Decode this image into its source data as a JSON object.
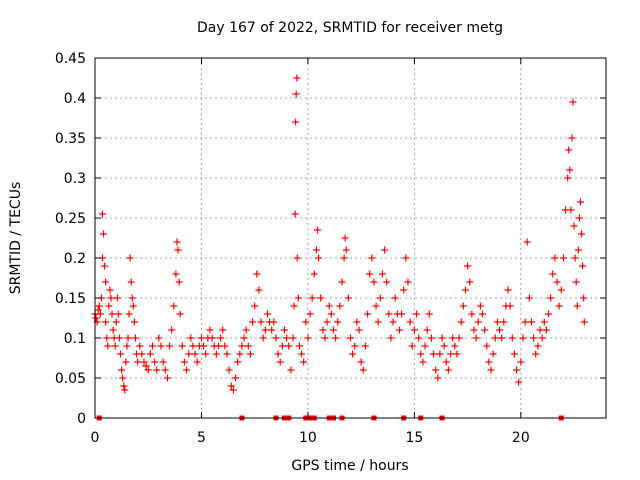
{
  "chart_data": {
    "type": "scatter",
    "title": "Day 167 of 2022, SRMTID for receiver metg",
    "xlabel": "GPS time / hours",
    "ylabel": "SRMTID / TECUs",
    "xlim": [
      0,
      24
    ],
    "ylim": [
      0,
      0.45
    ],
    "xticks": [
      0,
      5,
      10,
      15,
      20
    ],
    "yticks": [
      0,
      0.05,
      0.1,
      0.15,
      0.2,
      0.25,
      0.3,
      0.35,
      0.4,
      0.45
    ],
    "xtick_labels": [
      "0",
      "5",
      "10",
      "15",
      "20"
    ],
    "ytick_labels": [
      "0",
      "0.05",
      "0.1",
      "0.15",
      "0.2",
      "0.25",
      "0.3",
      "0.35",
      "0.4",
      "0.45"
    ],
    "grid": true,
    "marker": "+",
    "color": "#ff0000",
    "series": [
      {
        "name": "SRMTID",
        "points": [
          [
            0.0,
            0.13
          ],
          [
            0.05,
            0.125
          ],
          [
            0.1,
            0.12
          ],
          [
            0.15,
            0.135
          ],
          [
            0.2,
            0.14
          ],
          [
            0.25,
            0.13
          ],
          [
            0.3,
            0.15
          ],
          [
            0.35,
            0.2
          ],
          [
            0.35,
            0.255
          ],
          [
            0.4,
            0.23
          ],
          [
            0.45,
            0.19
          ],
          [
            0.5,
            0.17
          ],
          [
            0.5,
            0.12
          ],
          [
            0.55,
            0.1
          ],
          [
            0.6,
            0.09
          ],
          [
            0.65,
            0.14
          ],
          [
            0.7,
            0.16
          ],
          [
            0.75,
            0.15
          ],
          [
            0.8,
            0.13
          ],
          [
            0.85,
            0.11
          ],
          [
            0.9,
            0.1
          ],
          [
            0.95,
            0.09
          ],
          [
            1.0,
            0.12
          ],
          [
            1.05,
            0.15
          ],
          [
            1.1,
            0.13
          ],
          [
            1.15,
            0.1
          ],
          [
            1.2,
            0.08
          ],
          [
            1.25,
            0.06
          ],
          [
            1.3,
            0.05
          ],
          [
            1.35,
            0.04
          ],
          [
            1.4,
            0.035
          ],
          [
            1.45,
            0.07
          ],
          [
            1.5,
            0.09
          ],
          [
            1.55,
            0.1
          ],
          [
            1.6,
            0.13
          ],
          [
            1.65,
            0.2
          ],
          [
            1.7,
            0.17
          ],
          [
            1.75,
            0.15
          ],
          [
            1.8,
            0.14
          ],
          [
            1.85,
            0.12
          ],
          [
            1.9,
            0.1
          ],
          [
            1.95,
            0.08
          ],
          [
            2.0,
            0.07
          ],
          [
            2.1,
            0.09
          ],
          [
            2.2,
            0.08
          ],
          [
            2.3,
            0.07
          ],
          [
            2.4,
            0.065
          ],
          [
            2.5,
            0.06
          ],
          [
            2.6,
            0.08
          ],
          [
            2.7,
            0.09
          ],
          [
            2.8,
            0.07
          ],
          [
            2.9,
            0.06
          ],
          [
            3.0,
            0.1
          ],
          [
            3.1,
            0.09
          ],
          [
            3.2,
            0.07
          ],
          [
            3.3,
            0.06
          ],
          [
            3.4,
            0.05
          ],
          [
            3.5,
            0.09
          ],
          [
            3.6,
            0.11
          ],
          [
            3.7,
            0.14
          ],
          [
            3.8,
            0.18
          ],
          [
            3.85,
            0.22
          ],
          [
            3.9,
            0.21
          ],
          [
            3.95,
            0.17
          ],
          [
            4.0,
            0.13
          ],
          [
            4.1,
            0.09
          ],
          [
            4.2,
            0.07
          ],
          [
            4.3,
            0.06
          ],
          [
            4.4,
            0.08
          ],
          [
            4.5,
            0.1
          ],
          [
            4.6,
            0.09
          ],
          [
            4.7,
            0.08
          ],
          [
            4.8,
            0.07
          ],
          [
            4.9,
            0.09
          ],
          [
            5.0,
            0.1
          ],
          [
            5.1,
            0.09
          ],
          [
            5.2,
            0.08
          ],
          [
            5.3,
            0.1
          ],
          [
            5.4,
            0.11
          ],
          [
            5.5,
            0.1
          ],
          [
            5.6,
            0.09
          ],
          [
            5.7,
            0.08
          ],
          [
            5.8,
            0.09
          ],
          [
            5.9,
            0.1
          ],
          [
            6.0,
            0.11
          ],
          [
            6.1,
            0.09
          ],
          [
            6.2,
            0.08
          ],
          [
            6.3,
            0.06
          ],
          [
            6.4,
            0.04
          ],
          [
            6.5,
            0.035
          ],
          [
            6.6,
            0.05
          ],
          [
            6.7,
            0.07
          ],
          [
            6.8,
            0.08
          ],
          [
            6.9,
            0.09
          ],
          [
            7.0,
            0.1
          ],
          [
            7.1,
            0.11
          ],
          [
            7.2,
            0.09
          ],
          [
            7.3,
            0.08
          ],
          [
            7.4,
            0.12
          ],
          [
            7.5,
            0.14
          ],
          [
            7.6,
            0.18
          ],
          [
            7.7,
            0.16
          ],
          [
            7.8,
            0.12
          ],
          [
            7.9,
            0.1
          ],
          [
            8.0,
            0.11
          ],
          [
            8.1,
            0.13
          ],
          [
            8.2,
            0.12
          ],
          [
            8.3,
            0.11
          ],
          [
            8.4,
            0.12
          ],
          [
            8.5,
            0.1
          ],
          [
            8.6,
            0.08
          ],
          [
            8.7,
            0.07
          ],
          [
            8.8,
            0.09
          ],
          [
            8.9,
            0.11
          ],
          [
            9.0,
            0.1
          ],
          [
            9.1,
            0.09
          ],
          [
            9.2,
            0.06
          ],
          [
            9.3,
            0.1
          ],
          [
            9.35,
            0.14
          ],
          [
            9.4,
            0.255
          ],
          [
            9.42,
            0.37
          ],
          [
            9.45,
            0.405
          ],
          [
            9.48,
            0.425
          ],
          [
            9.5,
            0.2
          ],
          [
            9.55,
            0.15
          ],
          [
            9.6,
            0.09
          ],
          [
            9.7,
            0.08
          ],
          [
            9.8,
            0.07
          ],
          [
            9.9,
            0.12
          ],
          [
            10.0,
            0.1
          ],
          [
            10.1,
            0.13
          ],
          [
            10.2,
            0.15
          ],
          [
            10.3,
            0.18
          ],
          [
            10.4,
            0.21
          ],
          [
            10.45,
            0.235
          ],
          [
            10.5,
            0.2
          ],
          [
            10.6,
            0.15
          ],
          [
            10.7,
            0.11
          ],
          [
            10.8,
            0.1
          ],
          [
            10.9,
            0.12
          ],
          [
            11.0,
            0.14
          ],
          [
            11.1,
            0.13
          ],
          [
            11.2,
            0.11
          ],
          [
            11.3,
            0.1
          ],
          [
            11.4,
            0.12
          ],
          [
            11.5,
            0.14
          ],
          [
            11.6,
            0.17
          ],
          [
            11.7,
            0.2
          ],
          [
            11.75,
            0.225
          ],
          [
            11.8,
            0.21
          ],
          [
            11.9,
            0.15
          ],
          [
            12.0,
            0.1
          ],
          [
            12.1,
            0.08
          ],
          [
            12.2,
            0.09
          ],
          [
            12.3,
            0.12
          ],
          [
            12.4,
            0.11
          ],
          [
            12.5,
            0.07
          ],
          [
            12.6,
            0.06
          ],
          [
            12.7,
            0.09
          ],
          [
            12.8,
            0.13
          ],
          [
            12.9,
            0.18
          ],
          [
            13.0,
            0.2
          ],
          [
            13.1,
            0.17
          ],
          [
            13.2,
            0.14
          ],
          [
            13.3,
            0.12
          ],
          [
            13.4,
            0.15
          ],
          [
            13.5,
            0.18
          ],
          [
            13.6,
            0.21
          ],
          [
            13.7,
            0.17
          ],
          [
            13.8,
            0.13
          ],
          [
            13.9,
            0.1
          ],
          [
            14.0,
            0.12
          ],
          [
            14.1,
            0.15
          ],
          [
            14.2,
            0.13
          ],
          [
            14.3,
            0.11
          ],
          [
            14.4,
            0.13
          ],
          [
            14.5,
            0.16
          ],
          [
            14.6,
            0.2
          ],
          [
            14.7,
            0.17
          ],
          [
            14.8,
            0.12
          ],
          [
            14.9,
            0.09
          ],
          [
            15.0,
            0.11
          ],
          [
            15.1,
            0.13
          ],
          [
            15.2,
            0.1
          ],
          [
            15.3,
            0.08
          ],
          [
            15.4,
            0.07
          ],
          [
            15.5,
            0.09
          ],
          [
            15.6,
            0.11
          ],
          [
            15.7,
            0.13
          ],
          [
            15.8,
            0.1
          ],
          [
            15.9,
            0.08
          ],
          [
            16.0,
            0.06
          ],
          [
            16.1,
            0.05
          ],
          [
            16.2,
            0.08
          ],
          [
            16.3,
            0.1
          ],
          [
            16.4,
            0.09
          ],
          [
            16.5,
            0.07
          ],
          [
            16.6,
            0.06
          ],
          [
            16.7,
            0.08
          ],
          [
            16.8,
            0.1
          ],
          [
            16.9,
            0.09
          ],
          [
            17.0,
            0.08
          ],
          [
            17.1,
            0.1
          ],
          [
            17.2,
            0.12
          ],
          [
            17.3,
            0.14
          ],
          [
            17.4,
            0.16
          ],
          [
            17.5,
            0.19
          ],
          [
            17.6,
            0.17
          ],
          [
            17.7,
            0.13
          ],
          [
            17.8,
            0.11
          ],
          [
            17.9,
            0.1
          ],
          [
            18.0,
            0.12
          ],
          [
            18.1,
            0.14
          ],
          [
            18.2,
            0.13
          ],
          [
            18.3,
            0.11
          ],
          [
            18.4,
            0.09
          ],
          [
            18.5,
            0.07
          ],
          [
            18.6,
            0.06
          ],
          [
            18.7,
            0.08
          ],
          [
            18.8,
            0.1
          ],
          [
            18.9,
            0.12
          ],
          [
            19.0,
            0.11
          ],
          [
            19.1,
            0.1
          ],
          [
            19.2,
            0.12
          ],
          [
            19.3,
            0.14
          ],
          [
            19.4,
            0.16
          ],
          [
            19.5,
            0.14
          ],
          [
            19.6,
            0.1
          ],
          [
            19.7,
            0.08
          ],
          [
            19.8,
            0.06
          ],
          [
            19.9,
            0.045
          ],
          [
            20.0,
            0.07
          ],
          [
            20.1,
            0.1
          ],
          [
            20.2,
            0.12
          ],
          [
            20.3,
            0.22
          ],
          [
            20.4,
            0.15
          ],
          [
            20.5,
            0.12
          ],
          [
            20.6,
            0.1
          ],
          [
            20.7,
            0.08
          ],
          [
            20.8,
            0.09
          ],
          [
            20.9,
            0.11
          ],
          [
            21.0,
            0.1
          ],
          [
            21.1,
            0.12
          ],
          [
            21.2,
            0.11
          ],
          [
            21.3,
            0.13
          ],
          [
            21.4,
            0.15
          ],
          [
            21.5,
            0.18
          ],
          [
            21.6,
            0.2
          ],
          [
            21.7,
            0.17
          ],
          [
            21.8,
            0.14
          ],
          [
            21.9,
            0.16
          ],
          [
            22.0,
            0.2
          ],
          [
            22.1,
            0.26
          ],
          [
            22.2,
            0.3
          ],
          [
            22.25,
            0.335
          ],
          [
            22.3,
            0.31
          ],
          [
            22.35,
            0.26
          ],
          [
            22.4,
            0.35
          ],
          [
            22.45,
            0.395
          ],
          [
            22.5,
            0.24
          ],
          [
            22.55,
            0.2
          ],
          [
            22.6,
            0.17
          ],
          [
            22.65,
            0.14
          ],
          [
            22.7,
            0.21
          ],
          [
            22.75,
            0.25
          ],
          [
            22.8,
            0.27
          ],
          [
            22.85,
            0.23
          ],
          [
            22.9,
            0.19
          ],
          [
            22.95,
            0.15
          ],
          [
            22.98,
            0.12
          ],
          [
            0.2,
            0.0
          ],
          [
            6.9,
            0.0
          ],
          [
            8.5,
            0.0
          ],
          [
            8.9,
            0.0
          ],
          [
            9.1,
            0.0
          ],
          [
            9.9,
            0.0
          ],
          [
            10.1,
            0.0
          ],
          [
            10.3,
            0.0
          ],
          [
            11.0,
            0.0
          ],
          [
            11.2,
            0.0
          ],
          [
            11.6,
            0.0
          ],
          [
            13.1,
            0.0
          ],
          [
            14.5,
            0.0
          ],
          [
            15.3,
            0.0
          ],
          [
            16.3,
            0.0
          ],
          [
            21.9,
            0.0
          ]
        ]
      }
    ]
  }
}
